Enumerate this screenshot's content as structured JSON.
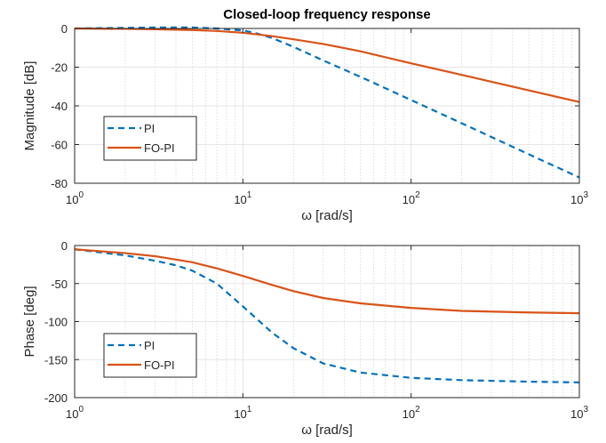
{
  "chart_data": [
    {
      "type": "line",
      "title": "Closed-loop frequency response",
      "xlabel": "ω [rad/s]",
      "ylabel": "Magnitude [dB]",
      "xscale": "log",
      "xlim": [
        1,
        1000
      ],
      "ylim": [
        -80,
        0
      ],
      "xticks": [
        {
          "value": 1,
          "base": "10",
          "exp": "0"
        },
        {
          "value": 10,
          "base": "10",
          "exp": "1"
        },
        {
          "value": 100,
          "base": "10",
          "exp": "2"
        },
        {
          "value": 1000,
          "base": "10",
          "exp": "3"
        }
      ],
      "yticks": [
        "0",
        "-20",
        "-40",
        "-60",
        "-80"
      ],
      "grid": true,
      "legend_position": "lower-left",
      "series": [
        {
          "name": "PI",
          "color": "#0072BD",
          "dash": "dashed",
          "x": [
            1,
            2,
            3,
            5,
            7,
            10,
            12,
            15,
            20,
            30,
            50,
            100,
            200,
            500,
            1000
          ],
          "y": [
            0,
            0.3,
            0.5,
            0.5,
            0.0,
            -1.0,
            -2.5,
            -5.0,
            -9.5,
            -16.5,
            -25.0,
            -37.0,
            -49.0,
            -65.0,
            -77.0
          ]
        },
        {
          "name": "FO-PI",
          "color": "#D95319",
          "dash": "solid",
          "x": [
            1,
            2,
            3,
            5,
            7,
            10,
            15,
            20,
            30,
            50,
            100,
            200,
            500,
            1000
          ],
          "y": [
            0,
            -0.2,
            -0.4,
            -0.8,
            -1.3,
            -2.2,
            -4.0,
            -5.6,
            -8.0,
            -11.8,
            -18.0,
            -24.0,
            -32.0,
            -38.0
          ]
        }
      ]
    },
    {
      "type": "line",
      "xlabel": "ω [rad/s]",
      "ylabel": "Phase [deg]",
      "xscale": "log",
      "xlim": [
        1,
        1000
      ],
      "ylim": [
        -200,
        0
      ],
      "xticks": [
        {
          "value": 1,
          "base": "10",
          "exp": "0"
        },
        {
          "value": 10,
          "base": "10",
          "exp": "1"
        },
        {
          "value": 100,
          "base": "10",
          "exp": "2"
        },
        {
          "value": 1000,
          "base": "10",
          "exp": "3"
        }
      ],
      "yticks": [
        "0",
        "-50",
        "-100",
        "-150",
        "-200"
      ],
      "grid": true,
      "legend_position": "lower-left",
      "series": [
        {
          "name": "PI",
          "color": "#0072BD",
          "dash": "dashed",
          "x": [
            1,
            2,
            3,
            4,
            5,
            7,
            10,
            15,
            20,
            30,
            50,
            100,
            200,
            500,
            1000
          ],
          "y": [
            -5,
            -13,
            -20,
            -26,
            -33,
            -50,
            -80,
            -115,
            -135,
            -155,
            -167,
            -174,
            -177,
            -179,
            -180
          ]
        },
        {
          "name": "FO-PI",
          "color": "#D95319",
          "dash": "solid",
          "x": [
            1,
            2,
            3,
            5,
            7,
            10,
            15,
            20,
            30,
            50,
            100,
            200,
            500,
            1000
          ],
          "y": [
            -5,
            -10,
            -14,
            -22,
            -30,
            -40,
            -52,
            -60,
            -69,
            -76,
            -82,
            -86,
            -88,
            -89
          ]
        }
      ]
    }
  ]
}
